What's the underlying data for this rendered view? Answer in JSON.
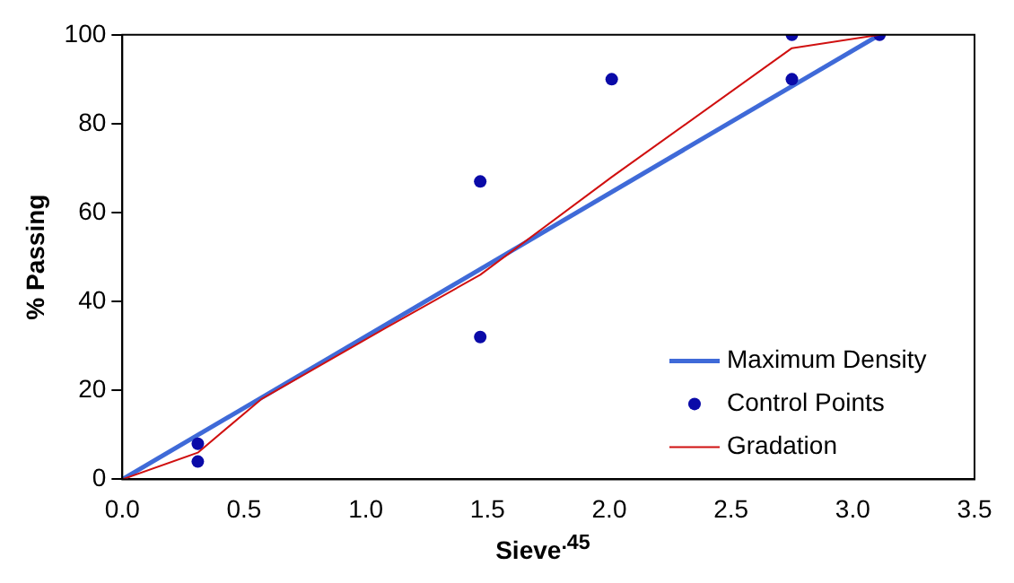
{
  "chart_data": {
    "type": "line",
    "xlabel": "Sieve$^{.45}$",
    "ylabel": "% Passing",
    "xlim": [
      0,
      3.5
    ],
    "xticks": [
      {
        "value": 0,
        "label": "0.0"
      },
      {
        "value": 0.5,
        "label": "0.5"
      },
      {
        "value": 1,
        "label": "1.0"
      },
      {
        "value": 1.5,
        "label": "1.5"
      },
      {
        "value": 2,
        "label": "2.0"
      },
      {
        "value": 2.5,
        "label": "2.5"
      },
      {
        "value": 3,
        "label": "3.0"
      },
      {
        "value": 3.5,
        "label": "3.5"
      }
    ],
    "ylim": [
      0,
      100
    ],
    "yticks": [
      0,
      20,
      40,
      60,
      80,
      100
    ],
    "grid": false,
    "legend": "bottom right",
    "marker": "none",
    "line_style": "solid",
    "series": [
      {
        "name": "Maximum Density",
        "type": "line",
        "color": "#3f6ad8",
        "x": [
          0,
          3.11
        ],
        "values": [
          0,
          100
        ]
      },
      {
        "name": "Control Points",
        "type": "scatter",
        "marker": "circle",
        "color": "#0a0aa8",
        "x": [
          0.31,
          0.31,
          1.47,
          1.47,
          2.01,
          2.75,
          2.75,
          3.11
        ],
        "values": [
          8,
          4,
          67,
          32,
          90,
          100,
          90,
          100
        ]
      },
      {
        "name": "Gradation",
        "type": "line",
        "color": "#d01010",
        "x": [
          0,
          0.31,
          0.57,
          1.08,
          1.47,
          2.01,
          2.75,
          3.11
        ],
        "values": [
          0,
          6,
          18,
          34,
          46,
          68,
          97,
          100
        ]
      }
    ]
  }
}
